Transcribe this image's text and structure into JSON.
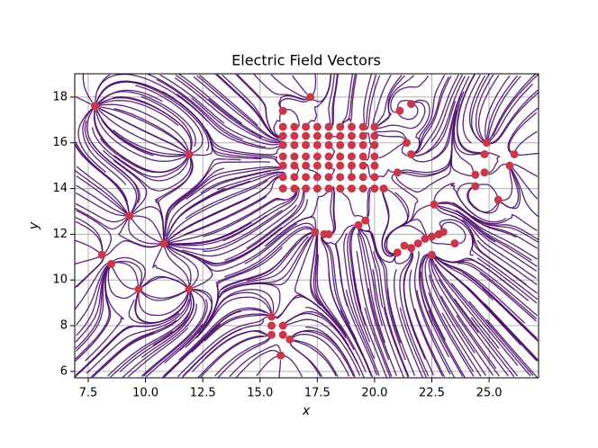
{
  "chart_data": {
    "type": "scatter",
    "title": "Electric Field Vectors",
    "x_label": "x",
    "y_label": "y",
    "xlim": [
      6.91,
      27.16
    ],
    "ylim": [
      5.72,
      19.02
    ],
    "xticks": [
      {
        "value": 7.5,
        "label": "7.5"
      },
      {
        "value": 10,
        "label": "10.0"
      },
      {
        "value": 12.5,
        "label": "12.5"
      },
      {
        "value": 15,
        "label": "15.0"
      },
      {
        "value": 17.5,
        "label": "17.5"
      },
      {
        "value": 20,
        "label": "20.0"
      },
      {
        "value": 22.5,
        "label": "22.5"
      },
      {
        "value": 25,
        "label": "25.0"
      }
    ],
    "yticks": [
      6,
      8,
      10,
      12,
      14,
      16,
      18
    ],
    "grid": true,
    "color": "#c8384a",
    "line_color": "#4b0c6b",
    "x": [
      7.8,
      11.9,
      9.3,
      10.8,
      8.1,
      8.5,
      9.7,
      11.9,
      15.5,
      15.5,
      15.5,
      16.0,
      16.0,
      16.3,
      15.9,
      16.0,
      17.2,
      17.4,
      18.0,
      17.8,
      19.3,
      19.6,
      20.4,
      21.0,
      21.4,
      21.6,
      21.1,
      21.6,
      22.6,
      22.5,
      23.5,
      24.4,
      24.4,
      24.8,
      24.8,
      24.9,
      25.4,
      25.9,
      26.1,
      16.0,
      16.5,
      17.0,
      17.5,
      18.0,
      18.5,
      19.0,
      19.5,
      16.0,
      16.5,
      17.0,
      17.5,
      18.0,
      18.5,
      19.0,
      19.5,
      16.0,
      16.5,
      17.0,
      17.5,
      18.0,
      18.5,
      19.0,
      19.5,
      16.0,
      16.5,
      17.0,
      17.5,
      18.0,
      18.5,
      19.0,
      19.5,
      16.0,
      16.5,
      17.0,
      17.5,
      18.0,
      18.5,
      19.0,
      19.5,
      16.0,
      16.5,
      17.0,
      17.5,
      18.0,
      18.5,
      19.0,
      19.5,
      16.0,
      16.5,
      17.0,
      17.5,
      18.0,
      18.5,
      19.0,
      19.5,
      20.0,
      20.0,
      20.0,
      20.0,
      20.0,
      20.0,
      20.0,
      21.0,
      21.3,
      21.6,
      21.9,
      22.2,
      22.5,
      22.8,
      23.0
    ],
    "values": [
      17.6,
      15.5,
      12.8,
      11.6,
      11.1,
      10.7,
      9.6,
      9.6,
      8.4,
      8.0,
      7.6,
      8.0,
      7.6,
      7.4,
      6.7,
      17.4,
      18.0,
      12.1,
      12.0,
      12.0,
      12.4,
      12.6,
      14.0,
      14.7,
      16.0,
      15.5,
      17.4,
      17.7,
      13.3,
      11.1,
      11.6,
      14.6,
      14.1,
      14.7,
      15.5,
      16.0,
      13.5,
      15.0,
      15.5,
      14.0,
      14.0,
      14.0,
      14.0,
      14.0,
      14.0,
      14.0,
      14.0,
      14.5,
      14.5,
      14.5,
      14.5,
      14.5,
      14.5,
      14.5,
      14.5,
      15.0,
      15.0,
      15.0,
      15.0,
      15.0,
      15.0,
      15.0,
      15.0,
      15.4,
      15.4,
      15.4,
      15.4,
      15.4,
      15.4,
      15.4,
      15.4,
      15.9,
      15.9,
      15.9,
      15.9,
      15.9,
      15.9,
      15.9,
      15.9,
      16.3,
      16.3,
      16.3,
      16.3,
      16.3,
      16.3,
      16.3,
      16.3,
      16.7,
      16.7,
      16.7,
      16.7,
      16.7,
      16.7,
      16.7,
      16.7,
      14.0,
      14.5,
      15.0,
      15.4,
      15.9,
      16.3,
      16.7,
      11.2,
      11.5,
      11.4,
      11.6,
      11.8,
      11.9,
      12.0,
      12.1
    ]
  }
}
